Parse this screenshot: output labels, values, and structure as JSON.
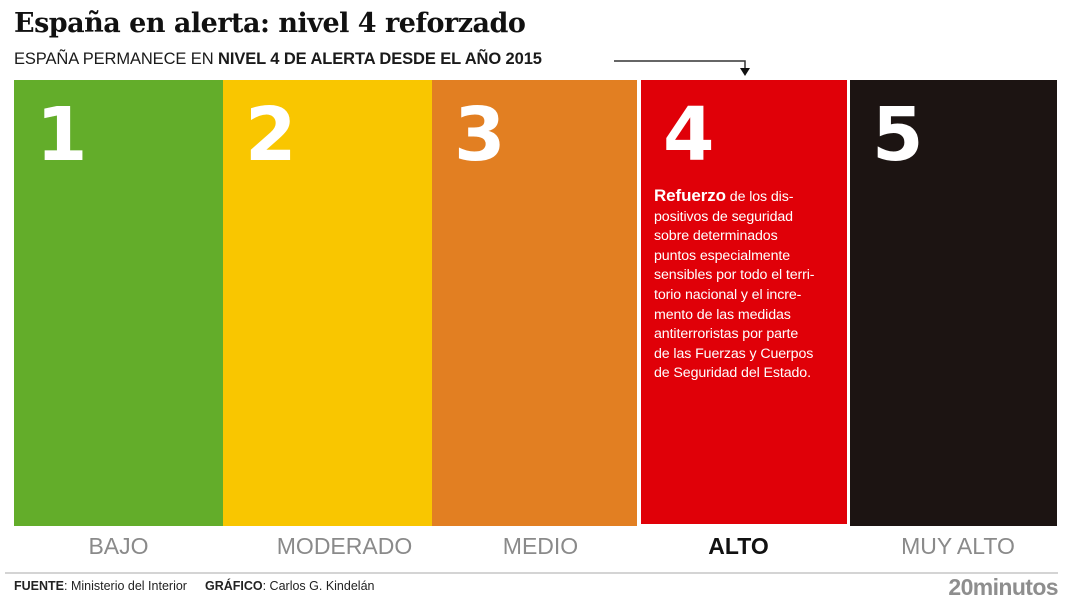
{
  "header": {
    "title": "España en alerta: nivel 4 reforzado",
    "subtitle_prefix": "ESPAÑA PERMANECE EN ",
    "subtitle_bold": "NIVEL 4 DE ALERTA DESDE EL AÑO 2015"
  },
  "levels": [
    {
      "number": "1",
      "label": "BAJO",
      "color": "#63ad2a",
      "active": false
    },
    {
      "number": "2",
      "label": "MODERADO",
      "color": "#f9c600",
      "active": false
    },
    {
      "number": "3",
      "label": "MEDIO",
      "color": "#e27f22",
      "active": false
    },
    {
      "number": "4",
      "label": "ALTO",
      "color": "#e00008",
      "active": true,
      "description_bold": "Refuerzo",
      "description_lines": [
        " de los dis-",
        "positivos de seguridad",
        "sobre determinados",
        "puntos especialmente",
        "sensibles por todo el terri-",
        "torio nacional y el incre-",
        "mento de las medidas",
        "antiterroristas por parte",
        "de las Fuerzas y Cuerpos",
        "de Seguridad del Estado."
      ]
    },
    {
      "number": "5",
      "label": "MUY ALTO",
      "color": "#1c1412",
      "active": false
    }
  ],
  "footer": {
    "source_label": "FUENTE",
    "source_value": ": Ministerio del Interior",
    "graphic_label": "GRÁFICO",
    "graphic_value": ": Carlos G. Kindelán",
    "logo": "20minutos"
  }
}
